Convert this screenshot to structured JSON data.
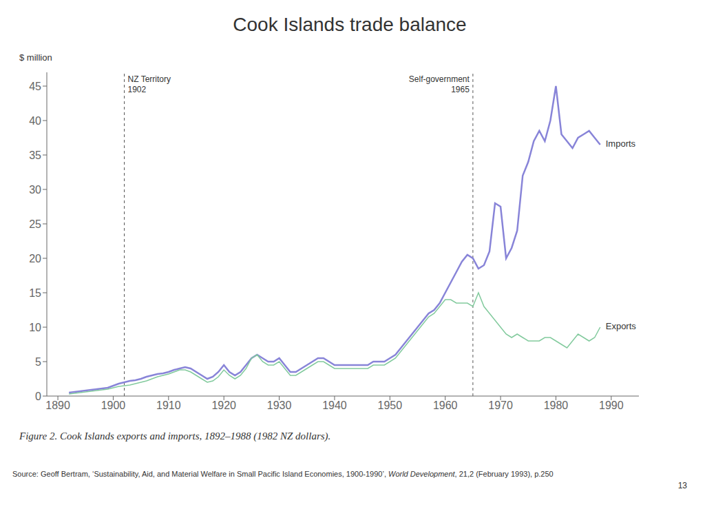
{
  "chart_data": {
    "type": "line",
    "title": "Cook Islands trade balance",
    "y_label": "$ million",
    "caption": "Figure 2. Cook Islands exports and imports, 1892–1988 (1982 NZ dollars).",
    "source_parts": [
      "Source: Geoff Bertram, ‘Sustainability, Aid, and Material Welfare in Small Pacific Island Economies, 1900-1990’, ",
      "World Development",
      ", 21,2 (February 1993), p.250"
    ],
    "page_number": "13",
    "xlim": [
      1888,
      1995
    ],
    "ylim": [
      0,
      47
    ],
    "xticks": [
      1890,
      1900,
      1910,
      1920,
      1930,
      1940,
      1950,
      1960,
      1970,
      1980,
      1990
    ],
    "yticks": [
      0,
      5,
      10,
      15,
      20,
      25,
      30,
      35,
      40,
      45
    ],
    "grid": false,
    "vlines": [
      {
        "x": 1902,
        "labels": [
          "NZ Territory",
          "1902"
        ]
      },
      {
        "x": 1965,
        "labels": [
          "Self-government",
          "1965"
        ]
      }
    ],
    "x": [
      1892,
      1893,
      1894,
      1895,
      1896,
      1897,
      1898,
      1899,
      1900,
      1901,
      1902,
      1903,
      1904,
      1905,
      1906,
      1907,
      1908,
      1909,
      1910,
      1911,
      1912,
      1913,
      1914,
      1915,
      1916,
      1917,
      1918,
      1919,
      1920,
      1921,
      1922,
      1923,
      1924,
      1925,
      1926,
      1927,
      1928,
      1929,
      1930,
      1931,
      1932,
      1933,
      1934,
      1935,
      1936,
      1937,
      1938,
      1939,
      1940,
      1941,
      1942,
      1943,
      1944,
      1945,
      1946,
      1947,
      1948,
      1949,
      1950,
      1951,
      1952,
      1953,
      1954,
      1955,
      1956,
      1957,
      1958,
      1959,
      1960,
      1961,
      1962,
      1963,
      1964,
      1965,
      1966,
      1967,
      1968,
      1969,
      1970,
      1971,
      1972,
      1973,
      1974,
      1975,
      1976,
      1977,
      1978,
      1979,
      1980,
      1981,
      1982,
      1983,
      1984,
      1985,
      1986,
      1987,
      1988
    ],
    "series": [
      {
        "name": "Imports",
        "color": "#8884d8",
        "values": [
          0.5,
          0.6,
          0.7,
          0.8,
          0.9,
          1.0,
          1.1,
          1.2,
          1.5,
          1.8,
          2.0,
          2.2,
          2.3,
          2.5,
          2.8,
          3.0,
          3.2,
          3.3,
          3.5,
          3.8,
          4.0,
          4.2,
          4.0,
          3.5,
          3.0,
          2.5,
          2.8,
          3.5,
          4.5,
          3.5,
          3.0,
          3.5,
          4.5,
          5.5,
          6.0,
          5.5,
          5.0,
          5.0,
          5.5,
          4.5,
          3.5,
          3.5,
          4.0,
          4.5,
          5.0,
          5.5,
          5.5,
          5.0,
          4.5,
          4.5,
          4.5,
          4.5,
          4.5,
          4.5,
          4.5,
          5.0,
          5.0,
          5.0,
          5.5,
          6.0,
          7.0,
          8.0,
          9.0,
          10.0,
          11.0,
          12.0,
          12.5,
          13.5,
          15.0,
          16.5,
          18.0,
          19.5,
          20.5,
          20.0,
          18.5,
          19.0,
          21.0,
          28.0,
          27.5,
          20.0,
          21.5,
          24.0,
          32.0,
          34.0,
          37.0,
          38.5,
          37.0,
          40.0,
          45.0,
          38.0,
          37.0,
          36.0,
          37.5,
          38.0,
          38.5,
          37.5,
          36.5
        ]
      },
      {
        "name": "Exports",
        "color": "#82ca9d",
        "values": [
          0.3,
          0.4,
          0.5,
          0.6,
          0.7,
          0.8,
          0.9,
          1.0,
          1.2,
          1.4,
          1.5,
          1.6,
          1.8,
          2.0,
          2.2,
          2.5,
          2.8,
          3.0,
          3.2,
          3.5,
          3.8,
          3.8,
          3.5,
          3.0,
          2.5,
          2.0,
          2.2,
          2.8,
          3.8,
          3.0,
          2.5,
          3.0,
          4.0,
          5.5,
          6.0,
          5.0,
          4.5,
          4.5,
          5.0,
          4.0,
          3.0,
          3.0,
          3.5,
          4.0,
          4.5,
          5.0,
          5.0,
          4.5,
          4.0,
          4.0,
          4.0,
          4.0,
          4.0,
          4.0,
          4.0,
          4.5,
          4.5,
          4.5,
          5.0,
          5.5,
          6.5,
          7.5,
          8.5,
          9.5,
          10.5,
          11.5,
          12.0,
          13.0,
          14.0,
          14.0,
          13.5,
          13.5,
          13.5,
          13.0,
          15.0,
          13.0,
          12.0,
          11.0,
          10.0,
          9.0,
          8.5,
          9.0,
          8.5,
          8.0,
          8.0,
          8.0,
          8.5,
          8.5,
          8.0,
          7.5,
          7.0,
          8.0,
          9.0,
          8.5,
          8.0,
          8.5,
          10.0
        ]
      }
    ]
  }
}
